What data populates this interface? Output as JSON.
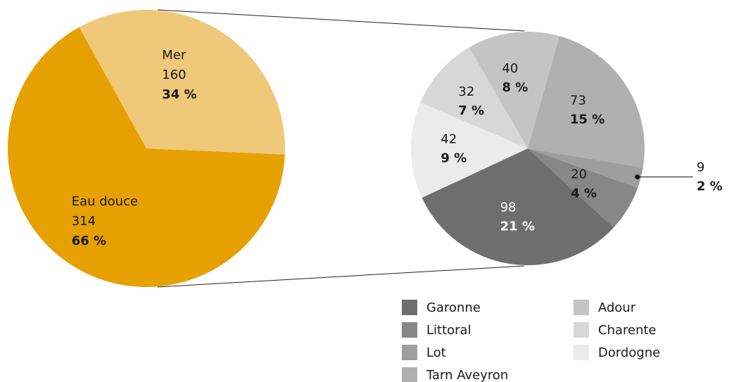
{
  "chart_data": [
    {
      "type": "pie",
      "categories": [
        "Mer",
        "Eau douce"
      ],
      "values": [
        160,
        314
      ],
      "percent_labels": [
        "34 %",
        "66 %"
      ],
      "colors": [
        "#f0c87a",
        "#e6a100"
      ]
    },
    {
      "type": "pie",
      "categories": [
        "Garonne",
        "Littoral",
        "Lot",
        "Tarn Aveyron",
        "Adour",
        "Charente",
        "Dordogne"
      ],
      "values": [
        98,
        20,
        9,
        73,
        40,
        32,
        42
      ],
      "percent_labels": [
        "21 %",
        "4 %",
        "2 %",
        "15 %",
        "8 %",
        "7 %",
        "9 %"
      ],
      "colors": [
        "#6e6e6e",
        "#878787",
        "#9e9e9e",
        "#b0b0b0",
        "#c4c4c4",
        "#d7d7d7",
        "#ebebeb"
      ],
      "legend": true
    }
  ]
}
